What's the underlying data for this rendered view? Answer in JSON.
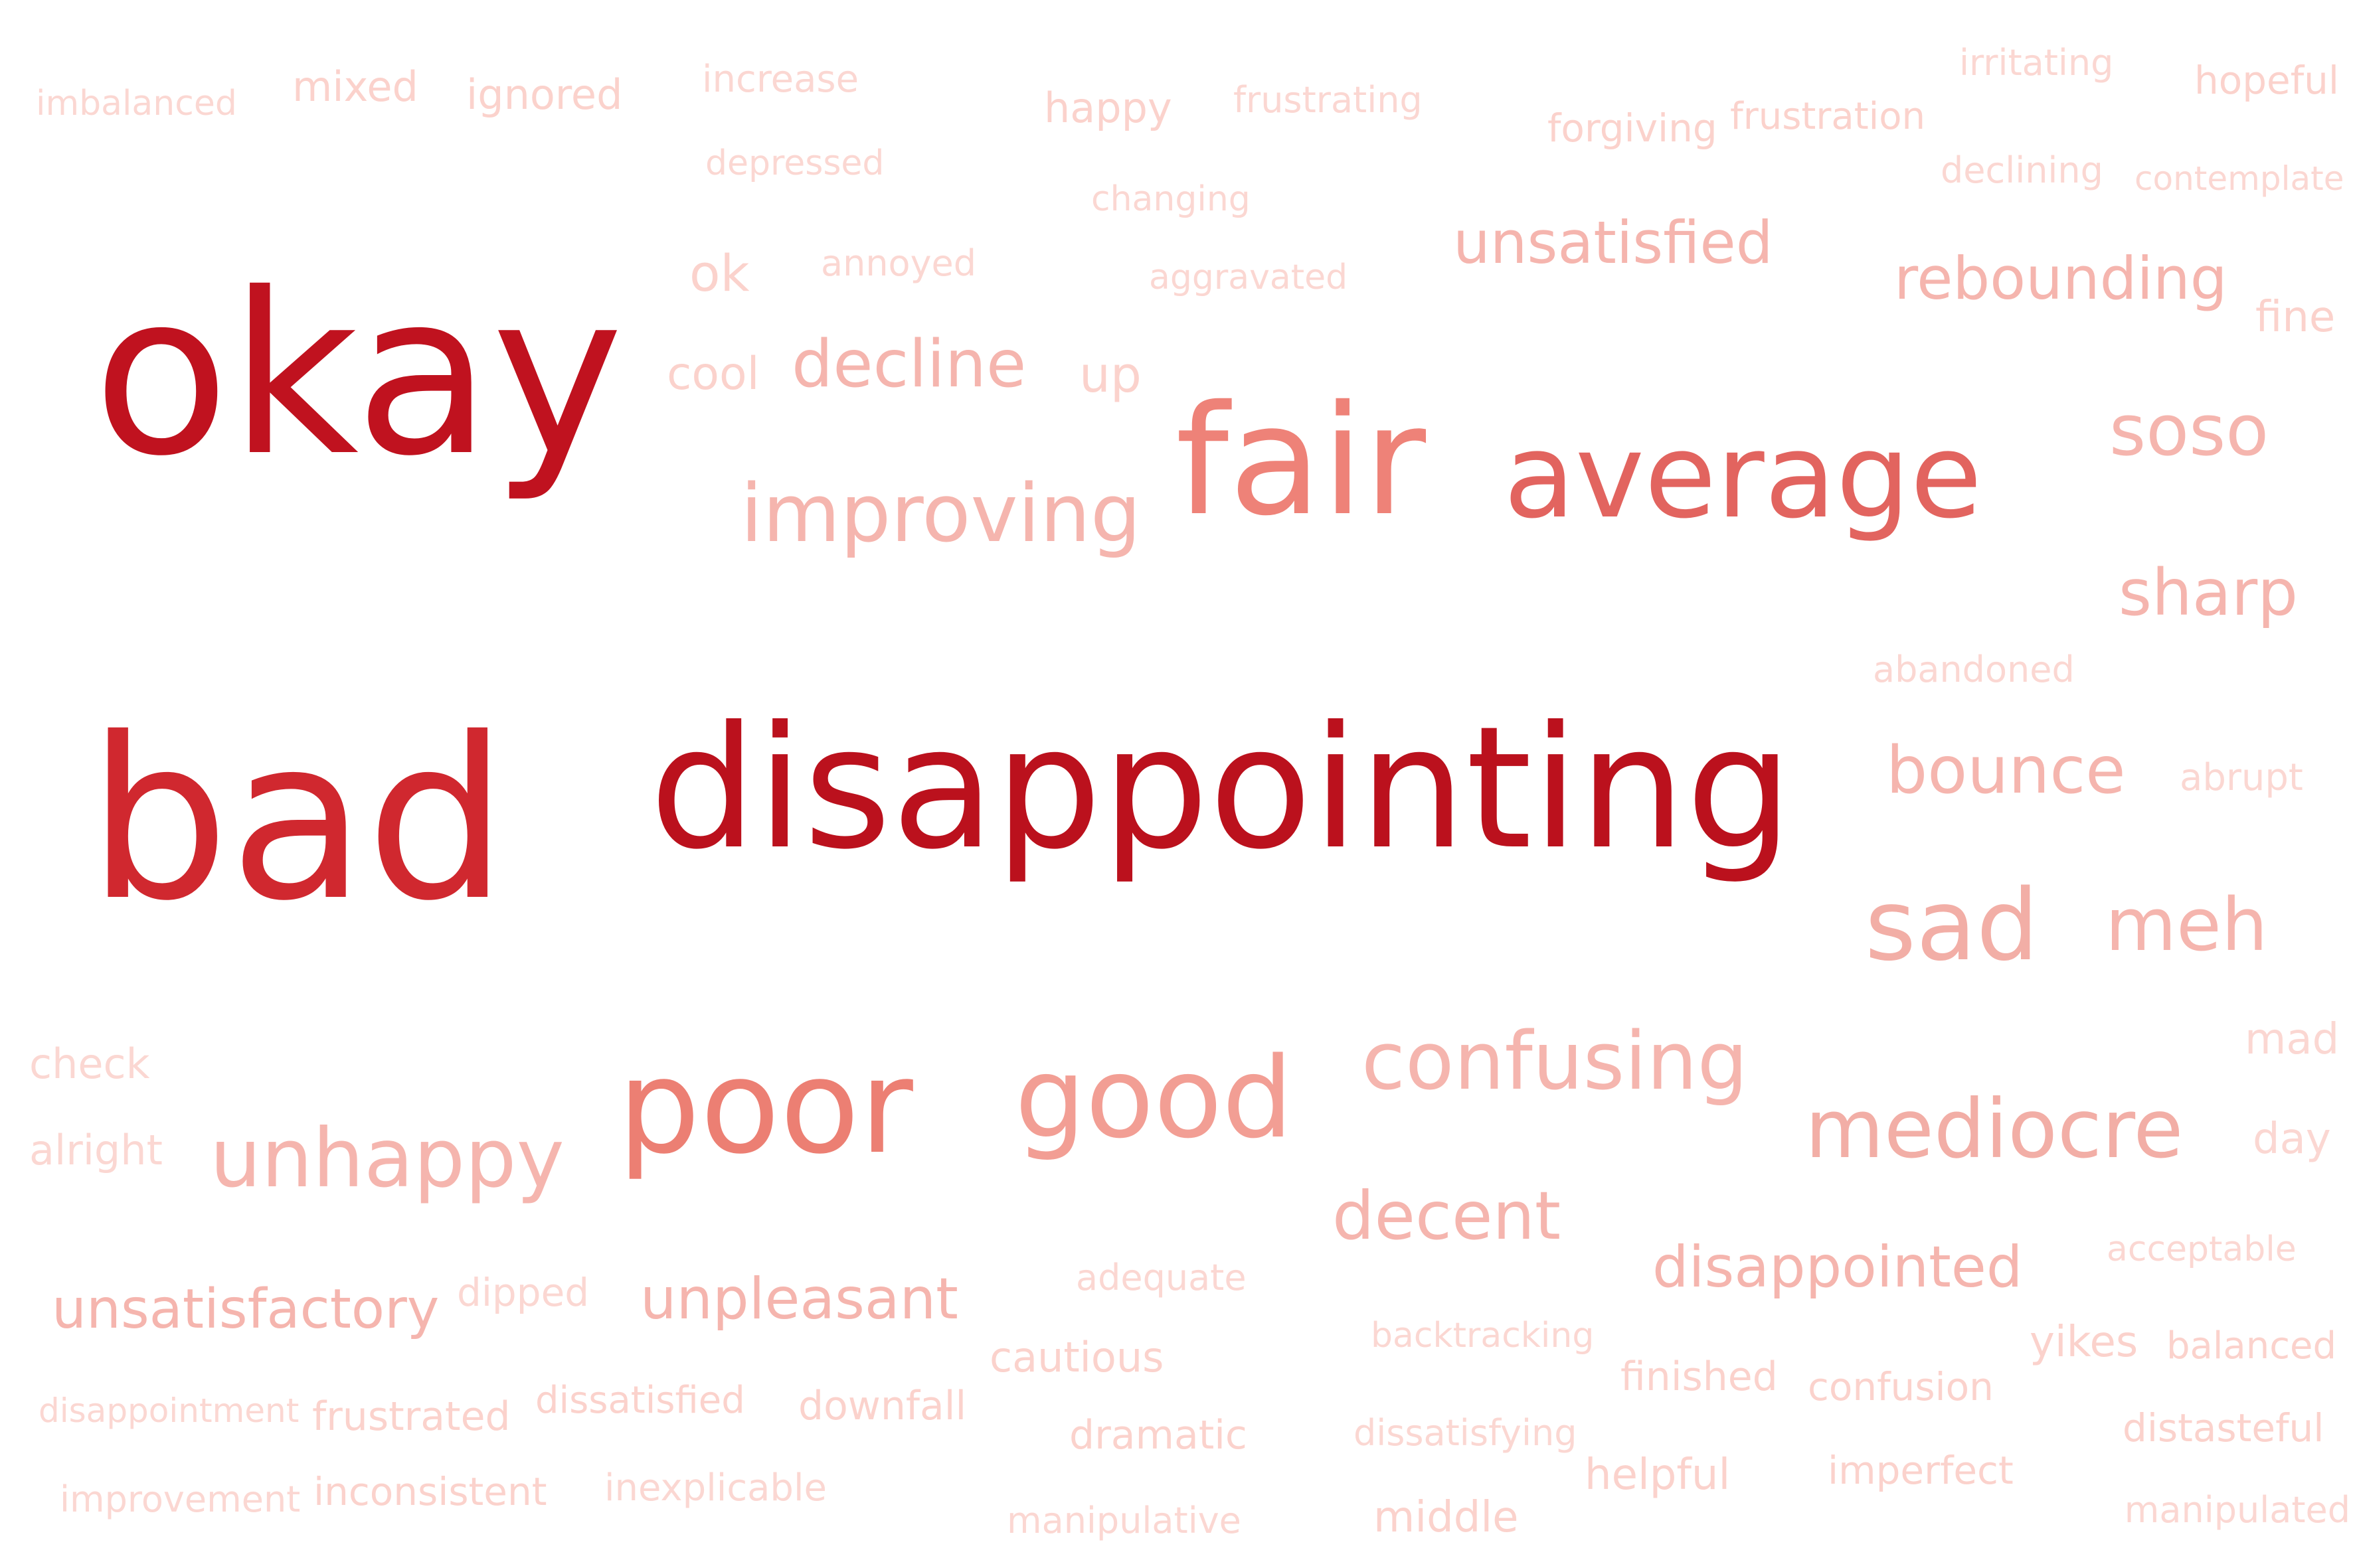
{
  "words": [
    {
      "text": "imbalanced",
      "color": "#fbd7d2"
    },
    {
      "text": "mixed",
      "color": "#fbd2cc"
    },
    {
      "text": "ignored",
      "color": "#fbd2cc"
    },
    {
      "text": "increase",
      "color": "#fbd7d2"
    },
    {
      "text": "happy",
      "color": "#fbd2cc"
    },
    {
      "text": "frustrating",
      "color": "#fbd7d2"
    },
    {
      "text": "forgiving",
      "color": "#fbd2cc"
    },
    {
      "text": "frustration",
      "color": "#fbd2cc"
    },
    {
      "text": "irritating",
      "color": "#fbd7d2"
    },
    {
      "text": "hopeful",
      "color": "#fbd2cc"
    },
    {
      "text": "depressed",
      "color": "#fbd7d2"
    },
    {
      "text": "changing",
      "color": "#fbd7d2"
    },
    {
      "text": "declining",
      "color": "#fbd7d2"
    },
    {
      "text": "contemplate",
      "color": "#fbd7d2"
    },
    {
      "text": "ok",
      "color": "#fbd2cc"
    },
    {
      "text": "annoyed",
      "color": "#fbd7d2"
    },
    {
      "text": "aggravated",
      "color": "#fbd7d2"
    },
    {
      "text": "unsatisfied",
      "color": "#f5b5ae"
    },
    {
      "text": "rebounding",
      "color": "#f5b5ae"
    },
    {
      "text": "fine",
      "color": "#fbd2cc"
    },
    {
      "text": "okay",
      "color": "#c0121f"
    },
    {
      "text": "cool",
      "color": "#fbd2cc"
    },
    {
      "text": "decline",
      "color": "#f5b5ae"
    },
    {
      "text": "up",
      "color": "#fbd2cc"
    },
    {
      "text": "fair",
      "color": "#ee8278"
    },
    {
      "text": "average",
      "color": "#e2645f"
    },
    {
      "text": "soso",
      "color": "#f5b5ae"
    },
    {
      "text": "improving",
      "color": "#f5b5ae"
    },
    {
      "text": "sharp",
      "color": "#f5b5ae"
    },
    {
      "text": "abandoned",
      "color": "#fbd7d2"
    },
    {
      "text": "bad",
      "color": "#d0282f"
    },
    {
      "text": "disappointing",
      "color": "#bb111d"
    },
    {
      "text": "bounce",
      "color": "#f5b5ae"
    },
    {
      "text": "abrupt",
      "color": "#fbd7d2"
    },
    {
      "text": "sad",
      "color": "#f2aea6"
    },
    {
      "text": "meh",
      "color": "#f5b5ae"
    },
    {
      "text": "check",
      "color": "#fbd7d2"
    },
    {
      "text": "mad",
      "color": "#fbd7d2"
    },
    {
      "text": "poor",
      "color": "#ec7f73"
    },
    {
      "text": "good",
      "color": "#f29e94"
    },
    {
      "text": "confusing",
      "color": "#f5b5ae"
    },
    {
      "text": "alright",
      "color": "#fbd7d2"
    },
    {
      "text": "unhappy",
      "color": "#f5b5ae"
    },
    {
      "text": "mediocre",
      "color": "#f2aea6"
    },
    {
      "text": "day",
      "color": "#fbd7d2"
    },
    {
      "text": "decent",
      "color": "#f5b5ae"
    },
    {
      "text": "acceptable",
      "color": "#fbd7d2"
    },
    {
      "text": "disappointed",
      "color": "#f5b5ae"
    },
    {
      "text": "unsatisfactory",
      "color": "#f5b5ae"
    },
    {
      "text": "dipped",
      "color": "#fbd7d2"
    },
    {
      "text": "unpleasant",
      "color": "#f5b5ae"
    },
    {
      "text": "adequate",
      "color": "#fbd7d2"
    },
    {
      "text": "backtracking",
      "color": "#fbd7d2"
    },
    {
      "text": "yikes",
      "color": "#fbd2cc"
    },
    {
      "text": "balanced",
      "color": "#fbd2cc"
    },
    {
      "text": "cautious",
      "color": "#fbd2cc"
    },
    {
      "text": "finished",
      "color": "#fbd2cc"
    },
    {
      "text": "confusion",
      "color": "#fbd2cc"
    },
    {
      "text": "disappointment",
      "color": "#fbd7d2"
    },
    {
      "text": "frustrated",
      "color": "#fbd2cc"
    },
    {
      "text": "dissatisfied",
      "color": "#fbd2cc"
    },
    {
      "text": "downfall",
      "color": "#fbd2cc"
    },
    {
      "text": "dramatic",
      "color": "#fbd2cc"
    },
    {
      "text": "dissatisfying",
      "color": "#fbd7d2"
    },
    {
      "text": "distasteful",
      "color": "#fbd2cc"
    },
    {
      "text": "helpful",
      "color": "#fbd2cc"
    },
    {
      "text": "imperfect",
      "color": "#fbd2cc"
    },
    {
      "text": "improvement",
      "color": "#fbd7d2"
    },
    {
      "text": "inconsistent",
      "color": "#fbd2cc"
    },
    {
      "text": "inexplicable",
      "color": "#fbd7d2"
    },
    {
      "text": "manipulative",
      "color": "#fbd7d2"
    },
    {
      "text": "middle",
      "color": "#fbd2cc"
    },
    {
      "text": "manipulated",
      "color": "#fbd7d2"
    }
  ]
}
